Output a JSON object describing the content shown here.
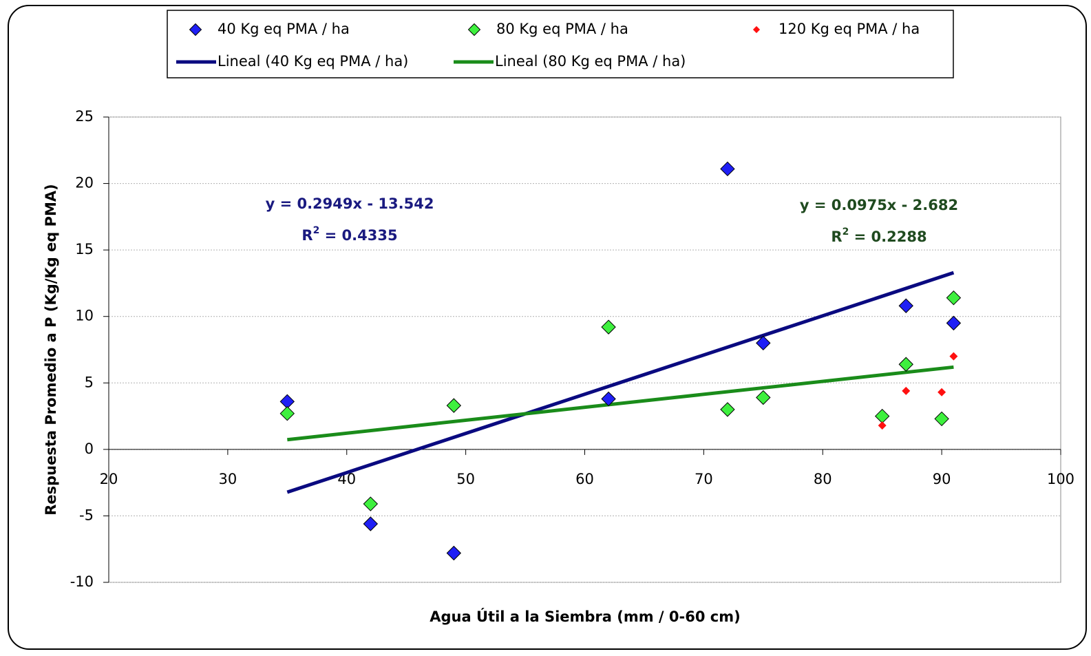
{
  "chart_data": {
    "type": "scatter",
    "x_label": "Agua Útil a la Siembra (mm / 0-60 cm)",
    "y_label": "Respuesta Promedio a P (Kg/Kg eq PMA)",
    "xlim": [
      20,
      100
    ],
    "xticks": [
      20,
      30,
      40,
      50,
      60,
      70,
      80,
      90,
      100
    ],
    "ylim": [
      -10,
      25
    ],
    "yticks": [
      -10,
      -5,
      0,
      5,
      10,
      15,
      20,
      25
    ],
    "grid": true,
    "legend": "top",
    "series": [
      {
        "name": "40 Kg eq PMA / ha",
        "type": "scatter",
        "color": "#1f1ff5",
        "marker_size": 10,
        "x": [
          35,
          42,
          49,
          62,
          72,
          75,
          87,
          91
        ],
        "values": [
          3.6,
          -5.6,
          -7.8,
          3.8,
          21.1,
          8.0,
          10.8,
          9.5
        ]
      },
      {
        "name": "80 Kg eq PMA / ha",
        "type": "scatter",
        "color": "#3ef03e",
        "marker_size": 10,
        "x": [
          35,
          42,
          49,
          62,
          72,
          75,
          85,
          87,
          90,
          91
        ],
        "values": [
          2.7,
          -4.1,
          3.3,
          9.2,
          3.0,
          3.9,
          2.5,
          6.4,
          2.3,
          11.4
        ]
      },
      {
        "name": "120 Kg eq PMA / ha",
        "type": "scatter",
        "color": "#ff1010",
        "marker_size": 6,
        "x": [
          85,
          87,
          90,
          91
        ],
        "values": [
          1.8,
          4.4,
          4.3,
          7.0
        ]
      },
      {
        "name": "Lineal (40 Kg eq PMA / ha)",
        "type": "line",
        "color": "#0a0a80",
        "x": [
          35,
          91
        ],
        "values": [
          -3.22,
          13.29
        ]
      },
      {
        "name": "Lineal (80 Kg eq PMA / ha)",
        "type": "line",
        "color": "#1a8c1a",
        "x": [
          35,
          91
        ],
        "values": [
          0.73,
          6.19
        ]
      }
    ],
    "annotations": [
      {
        "equation": "y = 0.2949x - 13.542",
        "r2": [
          "R",
          "2",
          " = 0.4335"
        ],
        "color": "#1a1a80"
      },
      {
        "equation": "y = 0.0975x - 2.682",
        "r2": [
          "R",
          "2",
          " = 0.2288"
        ],
        "color": "#1f4a1f"
      }
    ]
  }
}
